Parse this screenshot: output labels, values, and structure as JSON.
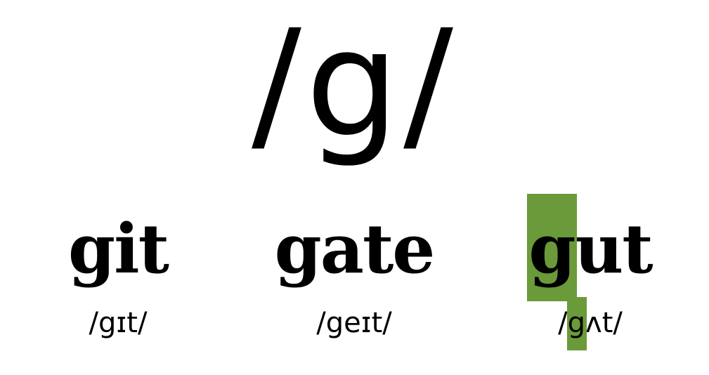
{
  "phoneme": "/g/",
  "accent_color": "#6a9a3a",
  "words": [
    {
      "word_pre": "git",
      "word_hl": "",
      "word_post": "",
      "ipa_pre": "/gɪt/",
      "ipa_hl": "",
      "ipa_post": ""
    },
    {
      "word_pre": "gate",
      "word_hl": "",
      "word_post": "",
      "ipa_pre": "/geɪt/",
      "ipa_hl": "",
      "ipa_post": ""
    },
    {
      "word_pre": "",
      "word_hl": "g",
      "word_post": "ut",
      "ipa_pre": "/",
      "ipa_hl": "g",
      "ipa_post": "ʌt/"
    }
  ]
}
